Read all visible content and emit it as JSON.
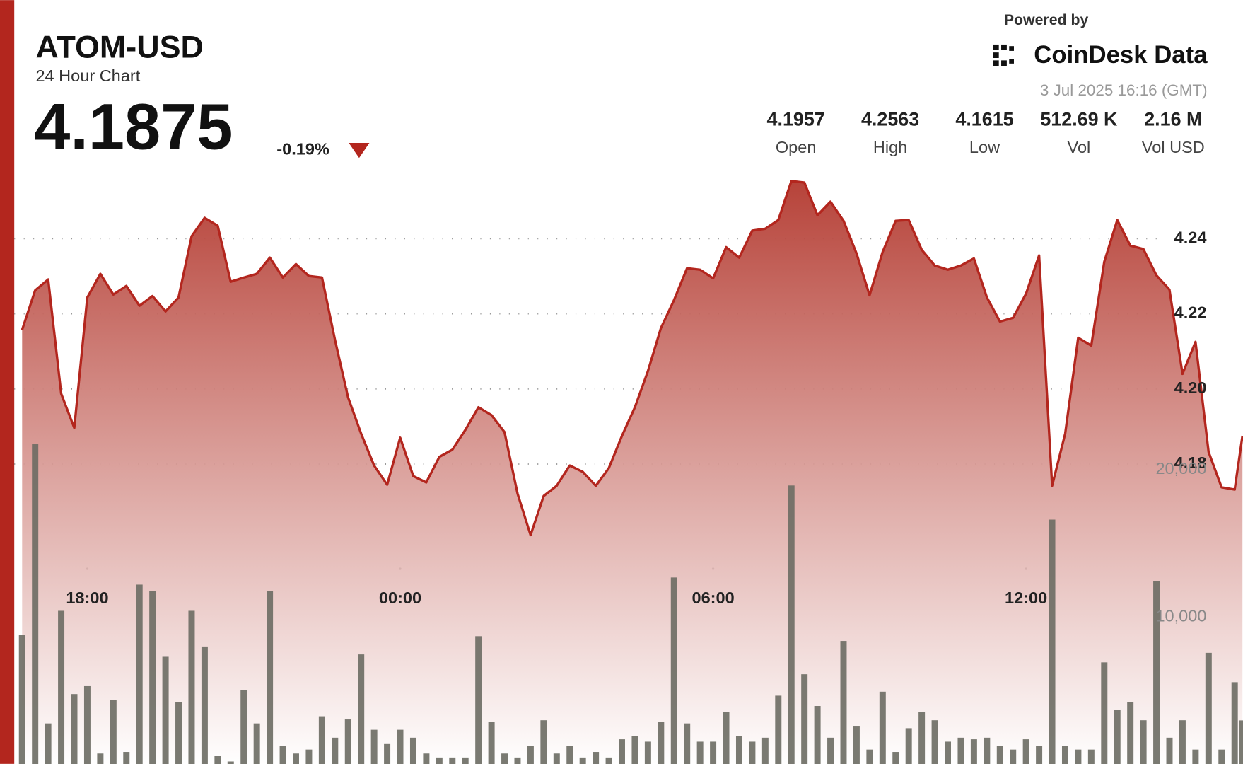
{
  "header": {
    "title": "ATOM-USD",
    "subtitle": "24 Hour Chart",
    "price": "4.1875",
    "change": "-0.19%",
    "powered_by": "Powered by",
    "brand": "CoinDesk Data",
    "timestamp": "3 Jul 2025 16:16 (GMT)",
    "stats": [
      {
        "value": "4.1957",
        "label": "Open"
      },
      {
        "value": "4.2563",
        "label": "High"
      },
      {
        "value": "4.1615",
        "label": "Low"
      },
      {
        "value": "512.69 K",
        "label": "Vol"
      },
      {
        "value": "2.16 M",
        "label": "Vol USD"
      }
    ]
  },
  "chart_data": {
    "type": "line",
    "x": [
      16.75,
      17,
      17.25,
      17.5,
      17.75,
      18,
      18.25,
      18.5,
      18.75,
      19,
      19.25,
      19.5,
      19.75,
      20,
      20.25,
      20.5,
      20.75,
      21,
      21.25,
      21.5,
      21.75,
      22,
      22.25,
      22.5,
      22.75,
      23,
      23.25,
      23.5,
      23.75,
      24,
      24.25,
      24.5,
      24.75,
      25,
      25.25,
      25.5,
      25.75,
      26,
      26.25,
      26.5,
      26.75,
      27,
      27.25,
      27.5,
      27.75,
      28,
      28.25,
      28.5,
      28.75,
      29,
      29.25,
      29.5,
      29.75,
      30,
      30.25,
      30.5,
      30.75,
      31,
      31.25,
      31.5,
      31.75,
      32,
      32.25,
      32.5,
      32.75,
      33,
      33.25,
      33.5,
      33.75,
      34,
      34.25,
      34.5,
      34.75,
      35,
      35.25,
      35.5,
      35.75,
      36,
      36.25,
      36.5,
      36.75,
      37,
      37.25,
      37.5,
      37.75,
      38,
      38.25,
      38.5,
      38.75,
      39,
      39.25,
      39.5,
      39.75,
      40,
      40.15
    ],
    "series": [
      {
        "color": "#b3261e",
        "values": [
          4.2157,
          4.2262,
          4.2291,
          4.1987,
          4.1896,
          4.2243,
          4.2306,
          4.2251,
          4.2274,
          4.2221,
          4.2247,
          4.2206,
          4.2243,
          4.2406,
          4.2455,
          4.2434,
          4.2285,
          4.2296,
          4.2306,
          4.2349,
          4.2296,
          4.2332,
          4.23,
          4.2296,
          4.213,
          4.1977,
          4.1881,
          4.1796,
          4.1745,
          4.187,
          4.1768,
          4.1751,
          4.1819,
          4.1838,
          4.1891,
          4.1951,
          4.193,
          4.1885,
          4.1721,
          4.1611,
          4.1715,
          4.1742,
          4.1796,
          4.1779,
          4.1742,
          4.1789,
          4.1874,
          4.1951,
          4.2047,
          4.2162,
          4.2236,
          4.2321,
          4.2317,
          4.2294,
          4.2377,
          4.2349,
          4.2421,
          4.2426,
          4.2449,
          4.2553,
          4.2549,
          4.2462,
          4.2498,
          4.2447,
          4.236,
          4.2249,
          4.2364,
          4.2447,
          4.2449,
          4.237,
          4.2328,
          4.2317,
          4.2328,
          4.2347,
          4.2243,
          4.2179,
          4.2189,
          4.2253,
          4.2355,
          4.1742,
          4.1881,
          4.2136,
          4.2115,
          4.2338,
          4.2449,
          4.2381,
          4.2372,
          4.2302,
          4.2264,
          4.204,
          4.2125,
          4.1832,
          4.1738,
          4.1732,
          4.1875
        ]
      },
      {
        "color": "#6b6b63",
        "type": "bar",
        "axis": "y2",
        "values": [
          8817,
          21720,
          2796,
          10430,
          4785,
          5323,
          753,
          4409,
          860,
          12204,
          11774,
          7312,
          4247,
          10430,
          8011,
          591,
          215,
          5054,
          2796,
          11774,
          1290,
          753,
          1022,
          3280,
          1828,
          3065,
          7473,
          2366,
          1398,
          2366,
          1828,
          753,
          484,
          484,
          484,
          8710,
          2903,
          753,
          484,
          1290,
          3011,
          753,
          1290,
          484,
          860,
          484,
          1720,
          1935,
          1559,
          2903,
          12688,
          2796,
          1559,
          1559,
          3548,
          1935,
          1559,
          1828,
          4677,
          18925,
          6129,
          3978,
          1828,
          8387,
          2634,
          1022,
          4946,
          860,
          2473,
          3548,
          3011,
          1559,
          1828,
          1720,
          1828,
          1290,
          1022,
          1720,
          1290,
          16613,
          1290,
          1022,
          1022,
          6935,
          3710,
          4247,
          3011,
          12419,
          1828,
          3011,
          1022,
          7581,
          1022,
          5591,
          3000
        ]
      }
    ],
    "xlim": [
      16.6,
      40.16
    ],
    "xticks": [
      {
        "value": 18,
        "label": "18:00"
      },
      {
        "value": 24,
        "label": "00:00"
      },
      {
        "value": 30,
        "label": "06:00"
      },
      {
        "value": 36,
        "label": "12:00"
      }
    ],
    "ylim": [
      4.1,
      4.257
    ],
    "yticks": [
      4.24,
      4.22,
      {
        "value": 4.2,
        "label": "4.20"
      },
      4.18
    ],
    "y2lim": [
      0,
      40000
    ],
    "y2ticks": [
      {
        "value": 10000,
        "label": "10,000"
      },
      {
        "value": 20000,
        "label": "20,000"
      }
    ],
    "grid": true
  }
}
